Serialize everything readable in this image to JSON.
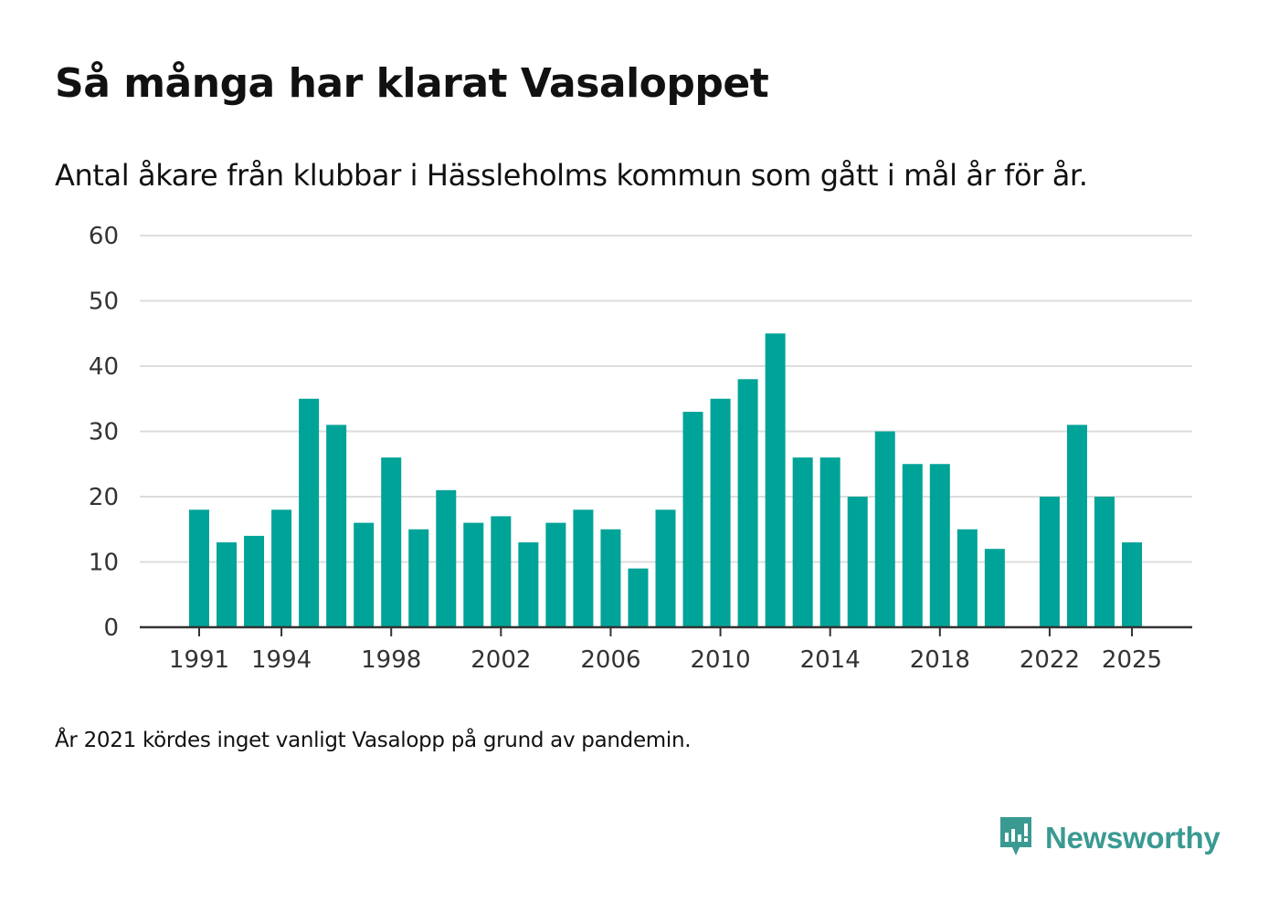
{
  "title": "Så många har klarat Vasaloppet",
  "subtitle": "Antal åkare från klubbar i Hässleholms kommun som gått i mål år för år.",
  "note": "År 2021 kördes inget vanligt Vasalopp på grund av pandemin.",
  "brand": {
    "name": "Newsworthy",
    "icon": "newsworthy-logo-icon",
    "color": "#3a9a92"
  },
  "colors": {
    "bar": "#00a398",
    "grid": "#dddddd",
    "axis": "#333333"
  },
  "chart_data": {
    "type": "bar",
    "title": "Så många har klarat Vasaloppet",
    "xlabel": "",
    "ylabel": "",
    "ylim": [
      0,
      60
    ],
    "yticks": [
      0,
      10,
      20,
      30,
      40,
      50,
      60
    ],
    "xticks": [
      1991,
      1994,
      1998,
      2002,
      2006,
      2010,
      2014,
      2018,
      2022,
      2025
    ],
    "grid": true,
    "categories": [
      1991,
      1992,
      1993,
      1994,
      1995,
      1996,
      1997,
      1998,
      1999,
      2000,
      2001,
      2002,
      2003,
      2004,
      2005,
      2006,
      2007,
      2008,
      2009,
      2010,
      2011,
      2012,
      2013,
      2014,
      2015,
      2016,
      2017,
      2018,
      2019,
      2020,
      2021,
      2022,
      2023,
      2024,
      2025
    ],
    "values": [
      18,
      13,
      14,
      18,
      35,
      31,
      16,
      26,
      15,
      21,
      16,
      17,
      13,
      16,
      18,
      15,
      9,
      18,
      33,
      35,
      38,
      45,
      26,
      26,
      20,
      30,
      25,
      25,
      15,
      12,
      null,
      20,
      31,
      20,
      13
    ]
  }
}
